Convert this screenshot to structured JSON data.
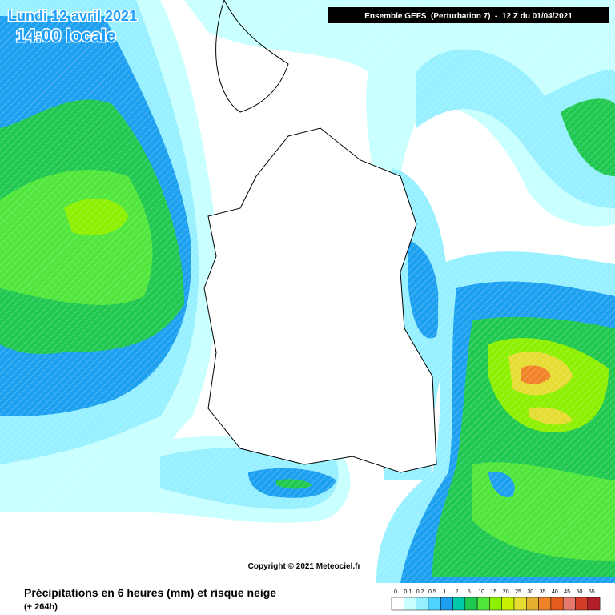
{
  "header": {
    "date": "Lundi 12 avril 2021",
    "time": "14:00 locale",
    "run": "Ensemble GEFS  (Perturbation 7)  -  12 Z du 01/04/2021"
  },
  "copyright": "Copyright © 2021 Meteociel.fr",
  "footer": {
    "title": "Précipitations en 6 heures (mm) et risque neige",
    "lead": "(+ 264h)"
  },
  "legend": {
    "items": [
      {
        "label": "0",
        "color": "#ffffff"
      },
      {
        "label": "0.1",
        "color": "#c8ffff"
      },
      {
        "label": "0.2",
        "color": "#96f0ff"
      },
      {
        "label": "0.5",
        "color": "#50d2ff"
      },
      {
        "label": "1",
        "color": "#1ea0f0"
      },
      {
        "label": "2",
        "color": "#00c8aa"
      },
      {
        "label": "5",
        "color": "#20c850"
      },
      {
        "label": "10",
        "color": "#50e63c"
      },
      {
        "label": "15",
        "color": "#8cf000"
      },
      {
        "label": "20",
        "color": "#c8f000"
      },
      {
        "label": "25",
        "color": "#e6dc32"
      },
      {
        "label": "30",
        "color": "#e6af2d"
      },
      {
        "label": "35",
        "color": "#f08228"
      },
      {
        "label": "40",
        "color": "#e65a1e"
      },
      {
        "label": "45",
        "color": "#e6786e"
      },
      {
        "label": "50",
        "color": "#d23c28"
      },
      {
        "label": "55",
        "color": "#b41e28"
      }
    ]
  }
}
